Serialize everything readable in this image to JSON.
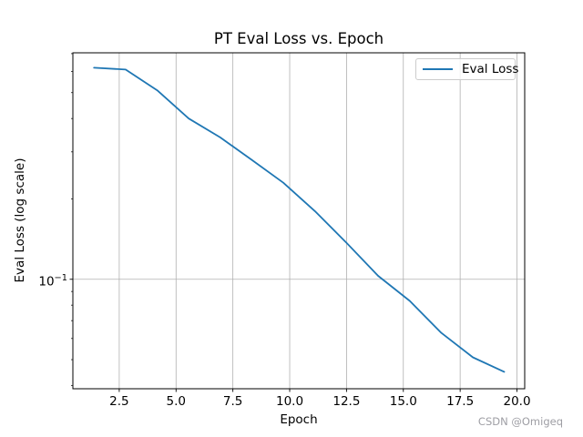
{
  "watermark": {
    "text": "CSDN @Omigeq",
    "color": "#9e9ea4"
  },
  "chart_data": {
    "type": "line",
    "title": "PT Eval Loss vs. Epoch",
    "xlabel": "Epoch",
    "ylabel": "Eval Loss (log scale)",
    "yscale": "log",
    "xlim": [
      0.46,
      20.34
    ],
    "ylim": [
      0.0389,
      0.705
    ],
    "grid": {
      "show": true,
      "color": "#b0b0b0"
    },
    "axes_color": "#000000",
    "xticks": {
      "values": [
        2.5,
        5.0,
        7.5,
        10.0,
        12.5,
        15.0,
        17.5,
        20.0
      ],
      "labels": [
        "2.5",
        "5.0",
        "7.5",
        "10.0",
        "12.5",
        "15.0",
        "17.5",
        "20.0"
      ]
    },
    "yticks": {
      "major": {
        "value": 0.1,
        "label_base": "10",
        "label_exponent": "−1"
      },
      "minor": [
        0.04,
        0.05,
        0.06,
        0.07,
        0.08,
        0.09,
        0.2,
        0.3,
        0.4,
        0.5,
        0.6,
        0.7
      ]
    },
    "legend": {
      "position": "upper right",
      "entries": [
        {
          "label": "Eval Loss",
          "color": "#1f77b4"
        }
      ]
    },
    "series": [
      {
        "name": "Eval Loss",
        "color": "#1f77b4",
        "line_width": 1.8,
        "x": [
          1.39,
          2.78,
          4.17,
          5.56,
          6.94,
          8.33,
          9.72,
          11.11,
          12.5,
          13.89,
          15.28,
          16.67,
          18.06,
          19.44
        ],
        "y": [
          0.62,
          0.61,
          0.51,
          0.4,
          0.34,
          0.28,
          0.23,
          0.18,
          0.137,
          0.103,
          0.083,
          0.063,
          0.051,
          0.045
        ]
      }
    ]
  }
}
